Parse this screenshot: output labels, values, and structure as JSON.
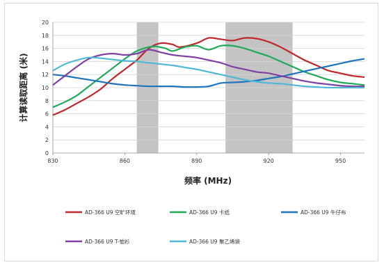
{
  "chart_data": {
    "type": "line",
    "title": "",
    "xlabel": "频率 (MHz)",
    "ylabel": "计算读取距离 (米)",
    "xlim": [
      830,
      960
    ],
    "ylim": [
      0,
      20
    ],
    "x_ticks": [
      830,
      860,
      890,
      920,
      950
    ],
    "y_ticks": [
      0,
      2,
      4,
      6,
      8,
      10,
      12,
      14,
      16,
      18,
      20
    ],
    "grid": "horizontal",
    "legend_position": "bottom",
    "shaded_bands": [
      {
        "from": 865,
        "to": 874
      },
      {
        "from": 902,
        "to": 930
      }
    ],
    "series": [
      {
        "name": "AD-366 U9 空旷环境",
        "color": "#c0282d",
        "points": [
          [
            830,
            5.8
          ],
          [
            835,
            6.6
          ],
          [
            840,
            7.6
          ],
          [
            845,
            8.6
          ],
          [
            850,
            9.8
          ],
          [
            855,
            11.4
          ],
          [
            860,
            12.8
          ],
          [
            865,
            14.2
          ],
          [
            870,
            16.0
          ],
          [
            875,
            16.8
          ],
          [
            880,
            16.6
          ],
          [
            883,
            16.2
          ],
          [
            890,
            16.8
          ],
          [
            895,
            17.6
          ],
          [
            900,
            17.4
          ],
          [
            905,
            17.2
          ],
          [
            910,
            17.6
          ],
          [
            915,
            17.5
          ],
          [
            920,
            17.0
          ],
          [
            925,
            16.2
          ],
          [
            930,
            15.2
          ],
          [
            935,
            14.2
          ],
          [
            940,
            13.4
          ],
          [
            945,
            12.6
          ],
          [
            950,
            12.2
          ],
          [
            955,
            11.8
          ],
          [
            960,
            11.6
          ]
        ]
      },
      {
        "name": "AD-366 U9 卡纸",
        "color": "#1faa5a",
        "points": [
          [
            830,
            7.0
          ],
          [
            835,
            7.8
          ],
          [
            840,
            8.8
          ],
          [
            845,
            10.2
          ],
          [
            850,
            11.6
          ],
          [
            855,
            13.0
          ],
          [
            860,
            14.4
          ],
          [
            865,
            15.6
          ],
          [
            870,
            16.2
          ],
          [
            873,
            16.3
          ],
          [
            877,
            16.0
          ],
          [
            880,
            15.6
          ],
          [
            885,
            16.2
          ],
          [
            890,
            16.4
          ],
          [
            895,
            15.8
          ],
          [
            900,
            16.4
          ],
          [
            905,
            16.4
          ],
          [
            910,
            16.0
          ],
          [
            915,
            15.4
          ],
          [
            920,
            14.8
          ],
          [
            925,
            14.0
          ],
          [
            930,
            13.2
          ],
          [
            935,
            12.4
          ],
          [
            940,
            11.8
          ],
          [
            945,
            11.2
          ],
          [
            950,
            10.8
          ],
          [
            955,
            10.6
          ],
          [
            960,
            10.4
          ]
        ]
      },
      {
        "name": "AD-366 U9 牛仔布",
        "color": "#1f74bb",
        "points": [
          [
            830,
            12.0
          ],
          [
            835,
            11.8
          ],
          [
            840,
            11.5
          ],
          [
            845,
            11.2
          ],
          [
            850,
            10.9
          ],
          [
            855,
            10.6
          ],
          [
            860,
            10.4
          ],
          [
            865,
            10.3
          ],
          [
            870,
            10.2
          ],
          [
            875,
            10.2
          ],
          [
            880,
            10.2
          ],
          [
            885,
            10.1
          ],
          [
            890,
            10.1
          ],
          [
            895,
            10.2
          ],
          [
            900,
            10.7
          ],
          [
            905,
            10.8
          ],
          [
            910,
            10.9
          ],
          [
            915,
            11.1
          ],
          [
            920,
            11.4
          ],
          [
            925,
            11.7
          ],
          [
            930,
            12.1
          ],
          [
            935,
            12.5
          ],
          [
            940,
            12.9
          ],
          [
            945,
            13.3
          ],
          [
            950,
            13.7
          ],
          [
            955,
            14.1
          ],
          [
            960,
            14.4
          ]
        ]
      },
      {
        "name": "AD-366 U9 T-恤衫",
        "color": "#7f3fa1",
        "points": [
          [
            830,
            10.4
          ],
          [
            835,
            11.8
          ],
          [
            840,
            13.2
          ],
          [
            845,
            14.4
          ],
          [
            850,
            15.0
          ],
          [
            855,
            15.2
          ],
          [
            860,
            15.0
          ],
          [
            865,
            15.2
          ],
          [
            870,
            15.8
          ],
          [
            875,
            15.4
          ],
          [
            880,
            15.0
          ],
          [
            885,
            14.8
          ],
          [
            890,
            14.6
          ],
          [
            895,
            14.2
          ],
          [
            900,
            13.8
          ],
          [
            905,
            13.2
          ],
          [
            910,
            12.8
          ],
          [
            915,
            12.4
          ],
          [
            920,
            12.2
          ],
          [
            925,
            11.8
          ],
          [
            930,
            11.4
          ],
          [
            935,
            11.0
          ],
          [
            940,
            10.7
          ],
          [
            945,
            10.5
          ],
          [
            950,
            10.3
          ],
          [
            955,
            10.2
          ],
          [
            960,
            10.2
          ]
        ]
      },
      {
        "name": "AD-366 U9 聚乙烯袋",
        "color": "#4fb8d6",
        "points": [
          [
            830,
            12.6
          ],
          [
            835,
            13.6
          ],
          [
            840,
            14.2
          ],
          [
            845,
            14.6
          ],
          [
            850,
            14.5
          ],
          [
            855,
            14.3
          ],
          [
            860,
            14.1
          ],
          [
            865,
            14.0
          ],
          [
            870,
            13.8
          ],
          [
            875,
            13.6
          ],
          [
            880,
            13.4
          ],
          [
            885,
            13.1
          ],
          [
            890,
            12.8
          ],
          [
            895,
            12.4
          ],
          [
            900,
            12.0
          ],
          [
            905,
            11.6
          ],
          [
            910,
            11.2
          ],
          [
            915,
            10.9
          ],
          [
            920,
            10.7
          ],
          [
            925,
            10.6
          ],
          [
            930,
            10.4
          ],
          [
            935,
            10.2
          ],
          [
            940,
            10.1
          ],
          [
            945,
            10.0
          ],
          [
            950,
            10.0
          ],
          [
            955,
            10.0
          ],
          [
            960,
            10.0
          ]
        ]
      }
    ]
  }
}
